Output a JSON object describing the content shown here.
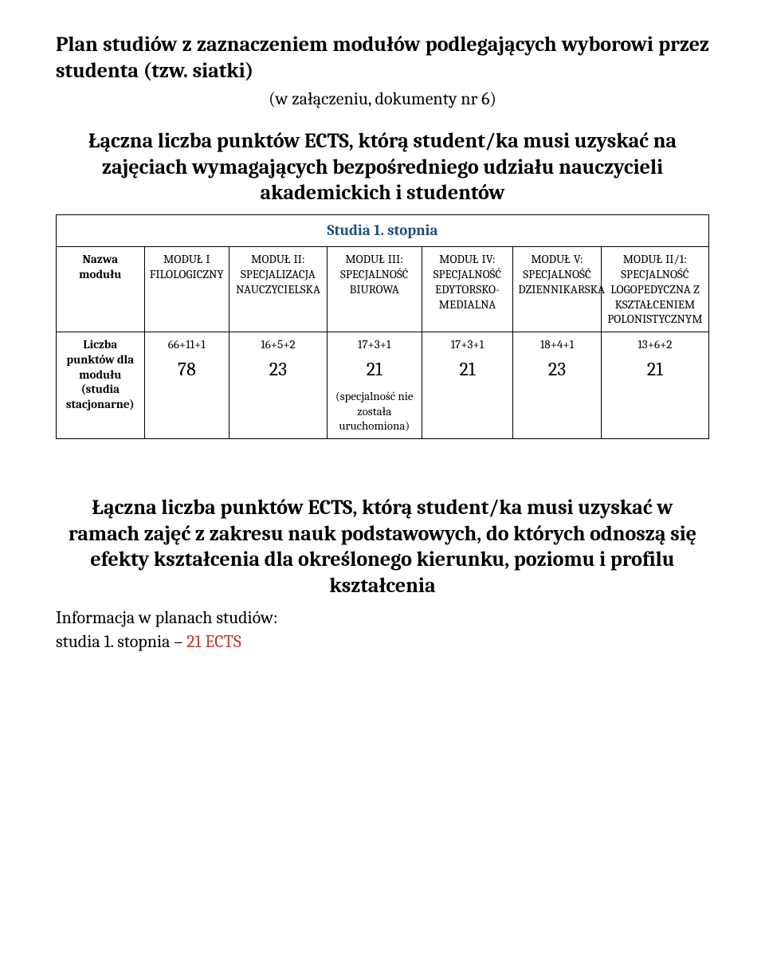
{
  "title": "Plan studiów z zaznaczeniem modułów podlegających wyborowi przez studenta (tzw. siatki)",
  "subtitle": "(w załączeniu, dokumenty nr 6)",
  "section1_heading": "Łączna liczba punktów ECTS, którą student/ka musi uzyskać na zajęciach wymagających bezpośredniego udziału nauczycieli akademickich i studentów",
  "table": {
    "banner": "Studia 1. stopnia",
    "row_headers": [
      "Nazwa modułu",
      "Liczba punktów dla modułu (studia stacjonarne)"
    ],
    "modules": [
      "MODUŁ I FILOLOGICZNY",
      "MODUŁ II: SPECJALIZACJA NAUCZYCIELSKA",
      "MODUŁ III: SPECJALNOŚĆ BIUROWA",
      "MODUŁ IV: SPECJALNOŚĆ EDYTORSKO-MEDIALNA",
      "MODUŁ V: SPECJALNOŚĆ DZIENNIKARSKA",
      "MODUŁ II/1: SPECJALNOŚĆ LOGOPEDYCZNA Z KSZTAŁCENIEM POLONISTYCZNYM"
    ],
    "sums": [
      "66+11+1",
      "16+5+2",
      "17+3+1",
      "17+3+1",
      "18+4+1",
      "13+6+2"
    ],
    "totals": [
      "78",
      "23",
      "21",
      "21",
      "23",
      "21"
    ],
    "note_col": 2,
    "note": "(specjalność nie została uruchomiona)"
  },
  "section2_heading": "Łączna liczba punktów ECTS, którą student/ka musi uzyskać w ramach zajęć z zakresu nauk podstawowych, do których odnoszą się efekty kształcenia dla określonego kierunku, poziomu i profilu kształcenia",
  "info_line_prefix": "Informacja w planach studiów:",
  "info_line2_prefix": "studia 1. stopnia – ",
  "info_line2_value": "21 ECTS",
  "colors": {
    "heading_blue": "#1f4e79",
    "accent_red": "#bf3a2b"
  }
}
